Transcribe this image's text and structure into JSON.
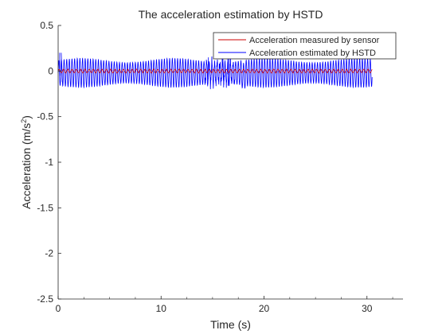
{
  "chart_data": {
    "type": "line",
    "title": "The acceleration estimation by HSTD",
    "xlabel": "Time (s)",
    "ylabel_main": "Acceleration (m/s",
    "ylabel_sup": "2",
    "ylabel_close": ")",
    "xlim": [
      0,
      33.5
    ],
    "ylim": [
      -2.5,
      0.5
    ],
    "xticks": [
      0,
      10,
      20,
      30
    ],
    "xtick_labels": [
      "0",
      "10",
      "20",
      "30"
    ],
    "yticks": [
      0.5,
      0,
      -0.5,
      -1,
      -1.5,
      -2,
      -2.5
    ],
    "ytick_labels": [
      "0.5",
      "0",
      "-0.5",
      "-1",
      "-1.5",
      "-2",
      "-2.5"
    ],
    "grid": false,
    "legend_position": "top-right",
    "series": [
      {
        "name": "Acceleration measured by sensor",
        "color": "#cc0000",
        "x_range": [
          0,
          30.5
        ],
        "amplitude": 0.02,
        "mean": 0.0
      },
      {
        "name": "Acceleration estimated by HSTD",
        "color": "#0000ff",
        "x_range": [
          0,
          30.5
        ],
        "amplitude": 0.16,
        "mean": -0.02,
        "spikes": [
          {
            "x": 0.3,
            "y": 0.2
          },
          {
            "x": 0.4,
            "y": -0.12
          },
          {
            "x": 14.5,
            "y": -0.15
          },
          {
            "x": 16.0,
            "y": 0.15
          },
          {
            "x": 16.5,
            "y": -0.16
          }
        ]
      }
    ]
  }
}
